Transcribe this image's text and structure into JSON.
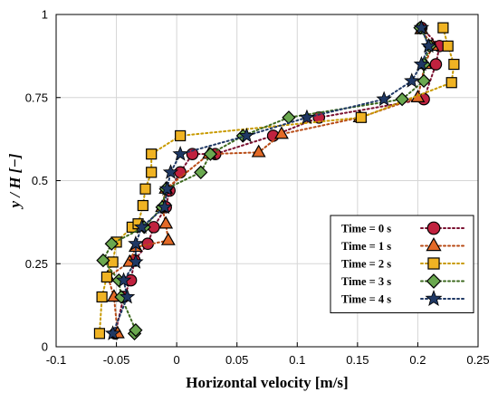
{
  "chart_data": {
    "type": "line",
    "xlabel": "Horizontal velocity [m/s]",
    "ylabel": "y / H [−]",
    "xlim": [
      -0.1,
      0.25
    ],
    "ylim": [
      0,
      1
    ],
    "xticks": [
      "-0.1",
      "-0.05",
      "0",
      "0.05",
      "0.1",
      "0.15",
      "0.2",
      "0.25"
    ],
    "yticks": [
      "0",
      "0.25",
      "0.5",
      "0.75",
      "1"
    ],
    "grid": true,
    "legend_position": "bottom-right",
    "series": [
      {
        "name": "Time = 0 s",
        "color": "#7b1030",
        "fill": "#c0223f",
        "marker": "circle",
        "points": [
          [
            -0.051,
            0.04
          ],
          [
            -0.044,
            0.15
          ],
          [
            -0.038,
            0.2
          ],
          [
            -0.035,
            0.26
          ],
          [
            -0.024,
            0.31
          ],
          [
            -0.019,
            0.36
          ],
          [
            -0.009,
            0.42
          ],
          [
            -0.006,
            0.47
          ],
          [
            0.003,
            0.525
          ],
          [
            0.013,
            0.58
          ],
          [
            0.032,
            0.58
          ],
          [
            0.08,
            0.635
          ],
          [
            0.118,
            0.69
          ],
          [
            0.205,
            0.745
          ],
          [
            0.215,
            0.85
          ],
          [
            0.218,
            0.905
          ],
          [
            0.203,
            0.96
          ]
        ]
      },
      {
        "name": "Time = 1 s",
        "color": "#b84a14",
        "fill": "#e36a27",
        "marker": "triangle",
        "points": [
          [
            -0.049,
            0.04
          ],
          [
            -0.052,
            0.15
          ],
          [
            -0.057,
            0.21
          ],
          [
            -0.039,
            0.255
          ],
          [
            -0.034,
            0.3
          ],
          [
            -0.007,
            0.32
          ],
          [
            -0.009,
            0.37
          ],
          [
            -0.012,
            0.42
          ],
          [
            -0.009,
            0.475
          ],
          [
            0.027,
            0.58
          ],
          [
            0.068,
            0.585
          ],
          [
            0.087,
            0.64
          ],
          [
            0.152,
            0.69
          ],
          [
            0.2,
            0.75
          ],
          [
            0.206,
            0.85
          ],
          [
            0.212,
            0.905
          ],
          [
            0.203,
            0.955
          ]
        ]
      },
      {
        "name": "Time = 2 s",
        "color": "#c89a00",
        "fill": "#f0b323",
        "marker": "square",
        "points": [
          [
            -0.064,
            0.04
          ],
          [
            -0.062,
            0.15
          ],
          [
            -0.058,
            0.21
          ],
          [
            -0.053,
            0.255
          ],
          [
            -0.05,
            0.315
          ],
          [
            -0.037,
            0.36
          ],
          [
            -0.032,
            0.37
          ],
          [
            -0.028,
            0.425
          ],
          [
            -0.026,
            0.475
          ],
          [
            -0.021,
            0.525
          ],
          [
            -0.021,
            0.58
          ],
          [
            0.003,
            0.635
          ],
          [
            0.153,
            0.69
          ],
          [
            0.228,
            0.795
          ],
          [
            0.23,
            0.85
          ],
          [
            0.225,
            0.905
          ],
          [
            0.221,
            0.96
          ]
        ]
      },
      {
        "name": "Time = 3 s",
        "color": "#3d6a1f",
        "fill": "#6aa84f",
        "marker": "diamond",
        "points": [
          [
            -0.035,
            0.04
          ],
          [
            -0.034,
            0.05
          ],
          [
            -0.046,
            0.15
          ],
          [
            -0.048,
            0.2
          ],
          [
            -0.061,
            0.26
          ],
          [
            -0.054,
            0.31
          ],
          [
            -0.027,
            0.36
          ],
          [
            -0.012,
            0.42
          ],
          [
            -0.009,
            0.475
          ],
          [
            0.02,
            0.525
          ],
          [
            0.028,
            0.58
          ],
          [
            0.055,
            0.635
          ],
          [
            0.093,
            0.69
          ],
          [
            0.187,
            0.745
          ],
          [
            0.205,
            0.8
          ],
          [
            0.205,
            0.85
          ],
          [
            0.21,
            0.905
          ],
          [
            0.202,
            0.96
          ]
        ]
      },
      {
        "name": "Time = 4 s",
        "color": "#1f3864",
        "fill": "#1f3864",
        "marker": "star",
        "points": [
          [
            -0.053,
            0.04
          ],
          [
            -0.041,
            0.15
          ],
          [
            -0.044,
            0.2
          ],
          [
            -0.034,
            0.255
          ],
          [
            -0.034,
            0.31
          ],
          [
            -0.029,
            0.36
          ],
          [
            -0.01,
            0.42
          ],
          [
            -0.008,
            0.475
          ],
          [
            -0.005,
            0.525
          ],
          [
            0.003,
            0.58
          ],
          [
            0.058,
            0.635
          ],
          [
            0.108,
            0.69
          ],
          [
            0.172,
            0.745
          ],
          [
            0.195,
            0.8
          ],
          [
            0.203,
            0.85
          ],
          [
            0.209,
            0.905
          ],
          [
            0.203,
            0.96
          ]
        ]
      }
    ]
  }
}
